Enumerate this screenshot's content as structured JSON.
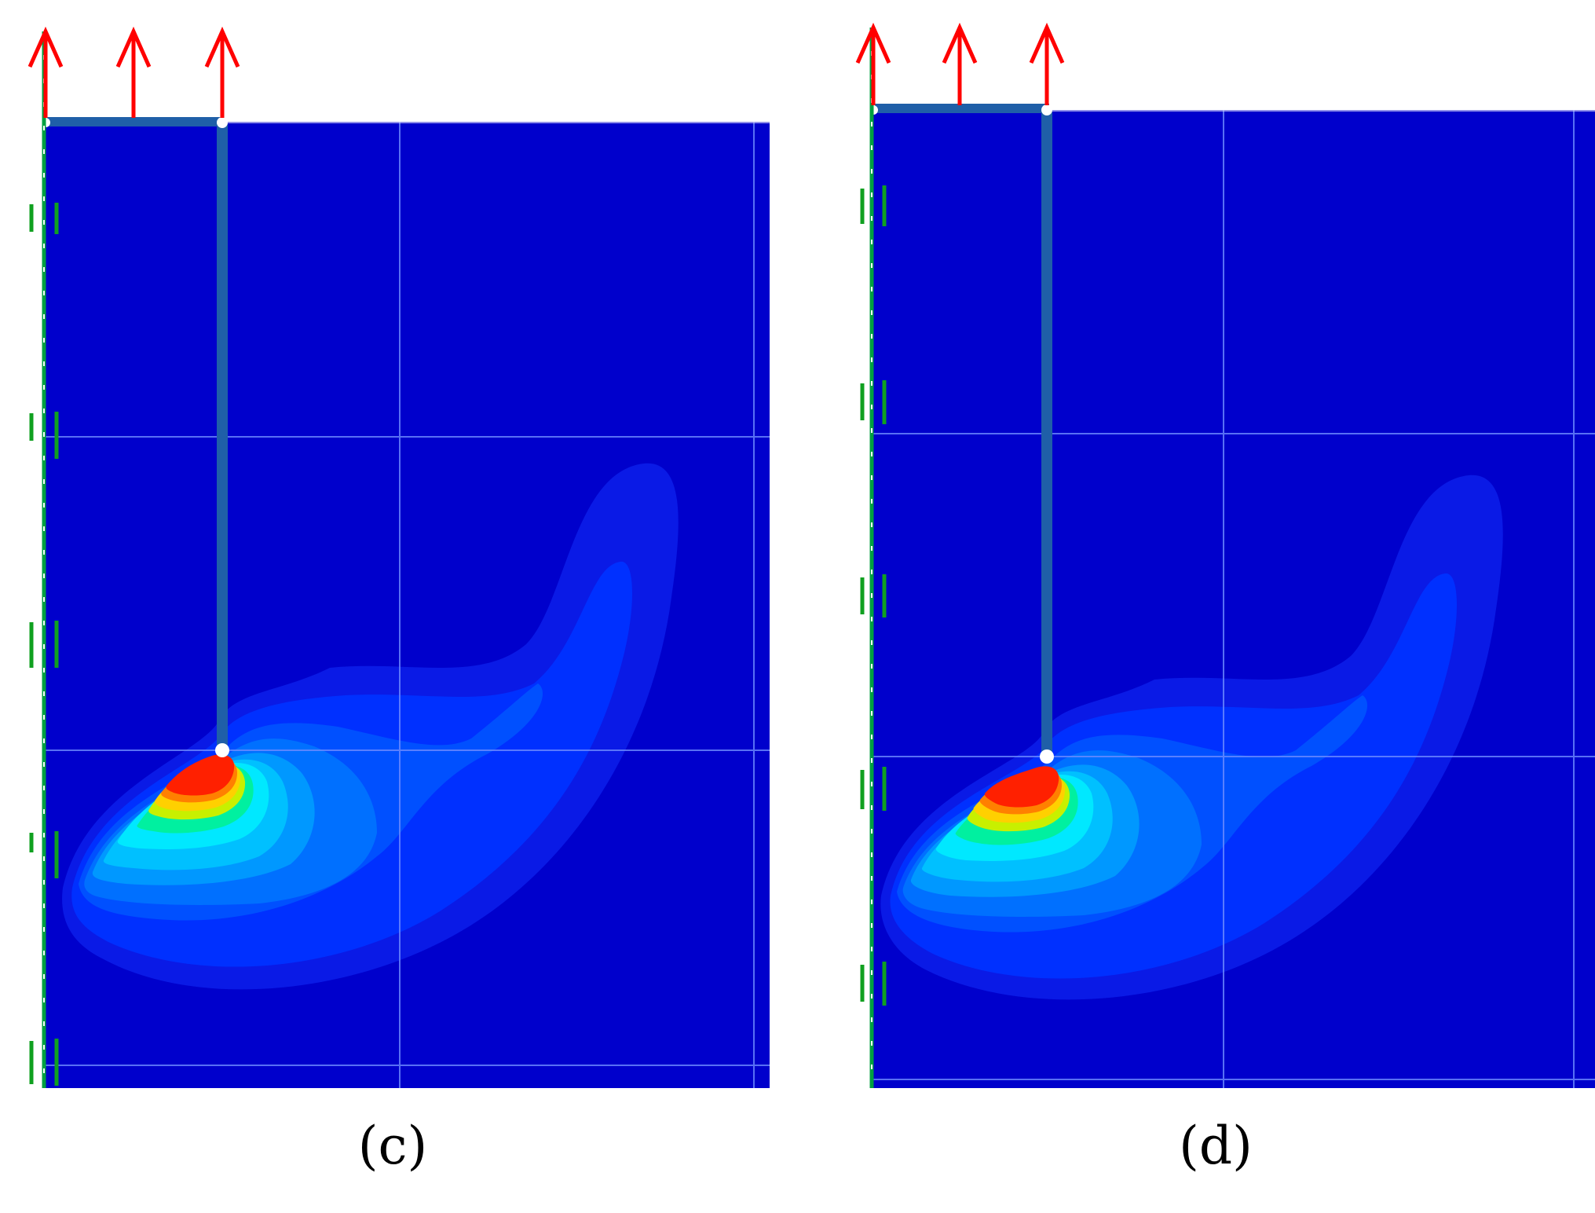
{
  "panels": [
    {
      "id": "c",
      "caption": "(c)"
    },
    {
      "id": "d",
      "caption": "(d)"
    }
  ],
  "colors": {
    "background_field": "#0000cc",
    "contour_levels": [
      "#0a1ae6",
      "#0030ff",
      "#0050ff",
      "#0070ff",
      "#0098ff",
      "#00c0ff",
      "#00e8ff",
      "#00f0a0",
      "#30e040",
      "#c8f000",
      "#ffd000",
      "#ff8000",
      "#ff2000",
      "#f00000"
    ],
    "grid_line": "#6f8cff",
    "pile": "#1f5fa8",
    "load_arrow": "#ff0000",
    "axis_line": "#00a040",
    "support_mark": "#10a020",
    "node": "#ffffff"
  },
  "icons": [
    "load-arrow-icon",
    "roller-support-icon",
    "node-icon"
  ]
}
